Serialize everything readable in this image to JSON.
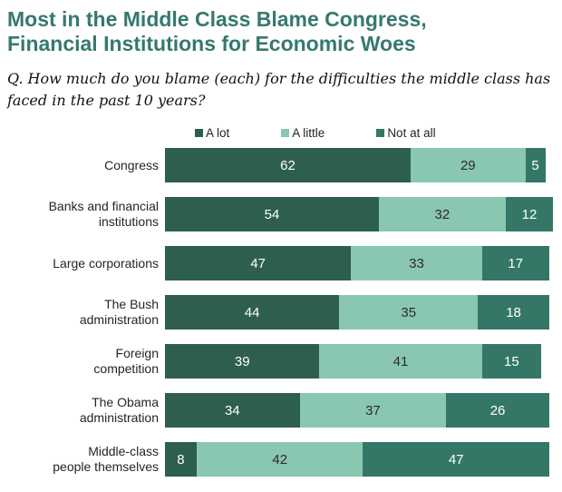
{
  "title": "Most in the Middle Class Blame Congress,\nFinancial Institutions for Economic Woes",
  "question": "Q. How much do you blame (each) for the difficulties the middle class has\nfaced in the past 10 years?",
  "colors": {
    "title_text": "#35796E",
    "a_lot": "#2E5E50",
    "a_little": "#8AC7B0",
    "not_at_all": "#357767",
    "label_text": "#232528",
    "value_on_dark": "#FFFFFF",
    "value_on_light": "#2B2B2B",
    "background": "#FFFFFF"
  },
  "legend": [
    {
      "label": "A lot",
      "color_key": "a_lot"
    },
    {
      "label": "A little",
      "color_key": "a_little"
    },
    {
      "label": "Not at all",
      "color_key": "not_at_all"
    }
  ],
  "chart_data": {
    "type": "bar",
    "orientation": "horizontal_stacked",
    "title": "Most in the Middle Class Blame Congress, Financial Institutions for Economic Woes",
    "categories": [
      "Congress",
      "Banks and financial\ninstitutions",
      "Large corporations",
      "The Bush\nadministration",
      "Foreign\ncompetition",
      "The Obama\nadministration",
      "Middle-class\npeople themselves"
    ],
    "series": [
      {
        "name": "A lot",
        "color_key": "a_lot",
        "text_tone": "light",
        "values": [
          62,
          54,
          47,
          44,
          39,
          34,
          8
        ]
      },
      {
        "name": "A little",
        "color_key": "a_little",
        "text_tone": "dark",
        "values": [
          29,
          32,
          33,
          35,
          41,
          37,
          42
        ]
      },
      {
        "name": "Not at all",
        "color_key": "not_at_all",
        "text_tone": "light",
        "values": [
          5,
          12,
          17,
          18,
          15,
          26,
          47
        ]
      }
    ],
    "x_max": 100,
    "value_labels": "inside",
    "legend_position": "top",
    "grid": false
  }
}
